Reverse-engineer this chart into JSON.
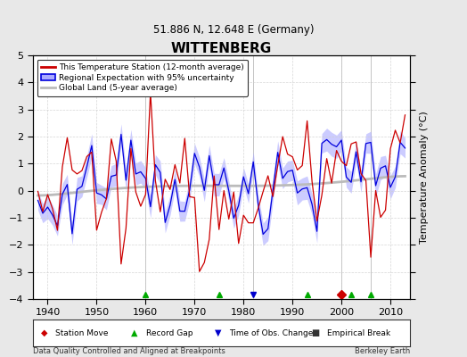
{
  "title": "WITTENBERG",
  "subtitle": "51.886 N, 12.648 E (Germany)",
  "ylabel": "Temperature Anomaly (°C)",
  "xlabel_left": "Data Quality Controlled and Aligned at Breakpoints",
  "xlabel_right": "Berkeley Earth",
  "ylim": [
    -4,
    5
  ],
  "xlim": [
    1937,
    2014
  ],
  "xticks": [
    1940,
    1950,
    1960,
    1970,
    1980,
    1990,
    2000,
    2010
  ],
  "yticks": [
    -4,
    -3,
    -2,
    -1,
    0,
    1,
    2,
    3,
    4,
    5
  ],
  "bg_color": "#e8e8e8",
  "plot_bg_color": "#ffffff",
  "red_color": "#cc0000",
  "blue_color": "#0000dd",
  "blue_fill_color": "#aaaaff",
  "gray_color": "#bbbbbb",
  "start_year": 1938,
  "n_years": 76,
  "seed": 12345,
  "markers": [
    {
      "year": 1960,
      "type": "^",
      "color": "#00aa00"
    },
    {
      "year": 1975,
      "type": "^",
      "color": "#00aa00"
    },
    {
      "year": 1982,
      "type": "v",
      "color": "#0000cc"
    },
    {
      "year": 1993,
      "type": "^",
      "color": "#00aa00"
    },
    {
      "year": 2000,
      "type": "D",
      "color": "#cc0000"
    },
    {
      "year": 2002,
      "type": "^",
      "color": "#00aa00"
    },
    {
      "year": 2006,
      "type": "^",
      "color": "#00aa00"
    }
  ],
  "legend_markers": [
    {
      "symbol": "◆",
      "color": "#cc0000",
      "label": "Station Move"
    },
    {
      "symbol": "▲",
      "color": "#00aa00",
      "label": "Record Gap"
    },
    {
      "symbol": "▼",
      "color": "#0000cc",
      "label": "Time of Obs. Change"
    },
    {
      "symbol": "■",
      "color": "#333333",
      "label": "Empirical Break"
    }
  ]
}
